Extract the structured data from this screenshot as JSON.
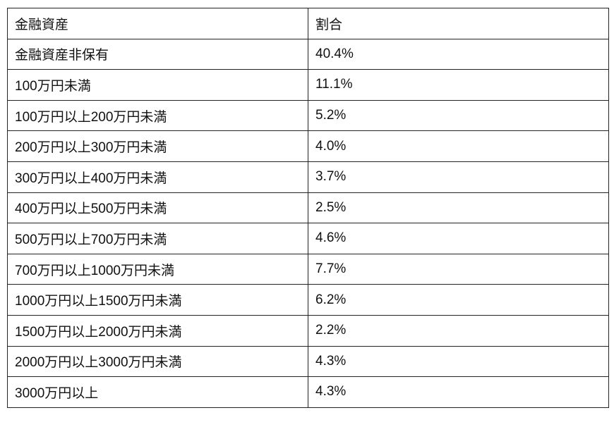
{
  "table": {
    "headers": [
      "金融資産",
      "割合"
    ],
    "rows": [
      [
        "金融資産非保有",
        "40.4%"
      ],
      [
        "100万円未満",
        "11.1%"
      ],
      [
        "100万円以上200万円未満",
        "5.2%"
      ],
      [
        "200万円以上300万円未満",
        "4.0%"
      ],
      [
        "300万円以上400万円未満",
        "3.7%"
      ],
      [
        "400万円以上500万円未満",
        "2.5%"
      ],
      [
        "500万円以上700万円未満",
        "4.6%"
      ],
      [
        "700万円以上1000万円未満",
        "7.7%"
      ],
      [
        "1000万円以上1500万円未満",
        "6.2%"
      ],
      [
        "1500万円以上2000万円未満",
        "2.2%"
      ],
      [
        "2000万円以上3000万円未満",
        "4.3%"
      ],
      [
        "3000万円以上",
        "4.3%"
      ]
    ]
  }
}
